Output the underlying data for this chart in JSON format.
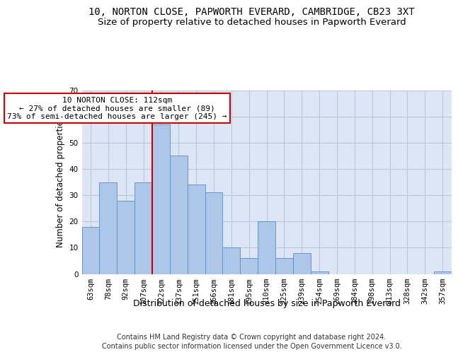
{
  "title": "10, NORTON CLOSE, PAPWORTH EVERARD, CAMBRIDGE, CB23 3XT",
  "subtitle": "Size of property relative to detached houses in Papworth Everard",
  "xlabel": "Distribution of detached houses by size in Papworth Everard",
  "ylabel": "Number of detached properties",
  "footer_line1": "Contains HM Land Registry data © Crown copyright and database right 2024.",
  "footer_line2": "Contains public sector information licensed under the Open Government Licence v3.0.",
  "annotation_title": "10 NORTON CLOSE: 112sqm",
  "annotation_line2": "← 27% of detached houses are smaller (89)",
  "annotation_line3": "73% of semi-detached houses are larger (245) →",
  "categories": [
    "63sqm",
    "78sqm",
    "92sqm",
    "107sqm",
    "122sqm",
    "137sqm",
    "151sqm",
    "166sqm",
    "181sqm",
    "195sqm",
    "210sqm",
    "225sqm",
    "239sqm",
    "254sqm",
    "269sqm",
    "284sqm",
    "298sqm",
    "313sqm",
    "328sqm",
    "342sqm",
    "357sqm"
  ],
  "values": [
    18,
    35,
    28,
    35,
    57,
    45,
    34,
    31,
    10,
    6,
    20,
    6,
    8,
    1,
    0,
    0,
    0,
    0,
    0,
    0,
    1
  ],
  "bar_color": "#aec6e8",
  "bar_edge_color": "#5b8ec4",
  "highlight_line_color": "#cc0000",
  "annotation_box_edge_color": "#cc0000",
  "annotation_box_face_color": "#ffffff",
  "background_color": "#ffffff",
  "plot_bg_color": "#dce6f5",
  "grid_color": "#b8c8dc",
  "ylim": [
    0,
    70
  ],
  "yticks": [
    0,
    10,
    20,
    30,
    40,
    50,
    60,
    70
  ],
  "title_fontsize": 10,
  "subtitle_fontsize": 9.5,
  "xlabel_fontsize": 9,
  "ylabel_fontsize": 8.5,
  "tick_fontsize": 7.5,
  "annotation_fontsize": 8,
  "footer_fontsize": 7
}
